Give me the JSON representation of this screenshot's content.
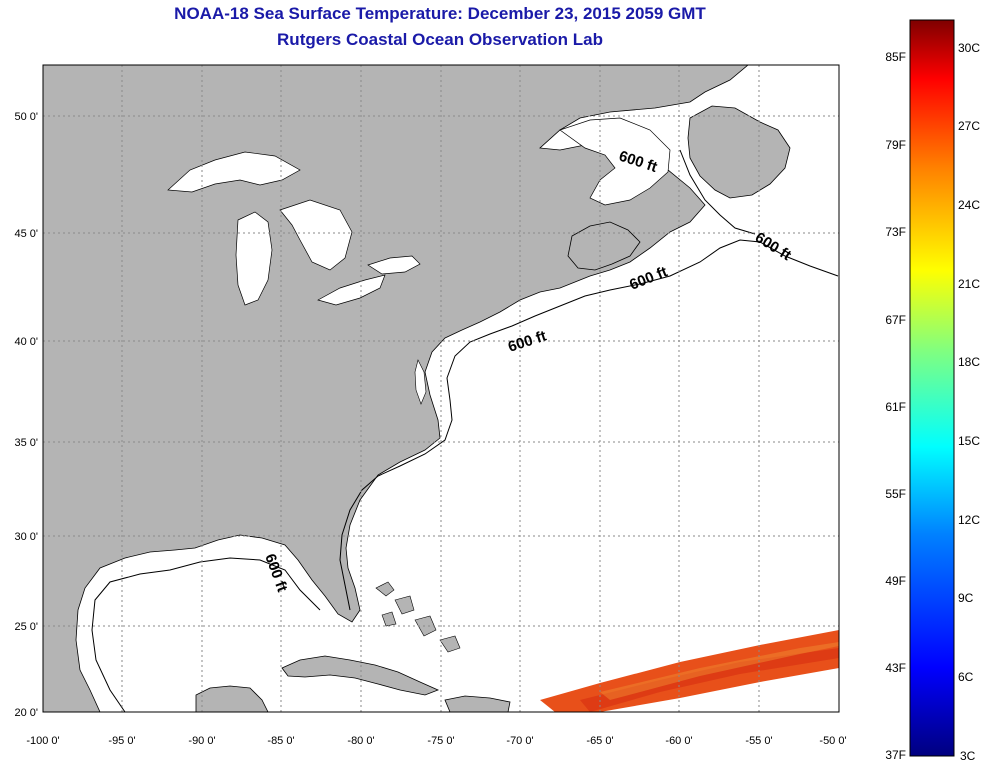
{
  "title": "NOAA-18 Sea Surface Temperature:  December 23, 2015 2059 GMT",
  "subtitle": "Rutgers Coastal Ocean Observation Lab",
  "lat_labels": [
    "50 0'",
    "45 0'",
    "40 0'",
    "35 0'",
    "30 0'",
    "25 0'",
    "20 0'"
  ],
  "lon_labels": [
    "-100 0'",
    "-95 0'",
    "-90 0'",
    "-85 0'",
    "-80 0'",
    "-75 0'",
    "-70 0'",
    "-65 0'",
    "-60 0'",
    "-55 0'",
    "-50 0'"
  ],
  "contour_labels": [
    "600 ft",
    "600 ft",
    "600 ft",
    "600 ft",
    "600 ft"
  ],
  "colorbar": {
    "f_labels": [
      "85F",
      "79F",
      "73F",
      "67F",
      "61F",
      "55F",
      "49F",
      "43F",
      "37F"
    ],
    "c_labels": [
      "30C",
      "27C",
      "24C",
      "21C",
      "18C",
      "15C",
      "12C",
      "9C",
      "6C",
      "3C"
    ],
    "colors": [
      "#00007f",
      "#0000ff",
      "#0080ff",
      "#00ffff",
      "#80ff80",
      "#ffff00",
      "#ff8000",
      "#ff0000",
      "#7f0000"
    ]
  },
  "colors": {
    "land": "#b4b4b4",
    "ocean": "#ffffff",
    "title": "#1a1aa8",
    "grid": "#8a8a8a"
  }
}
